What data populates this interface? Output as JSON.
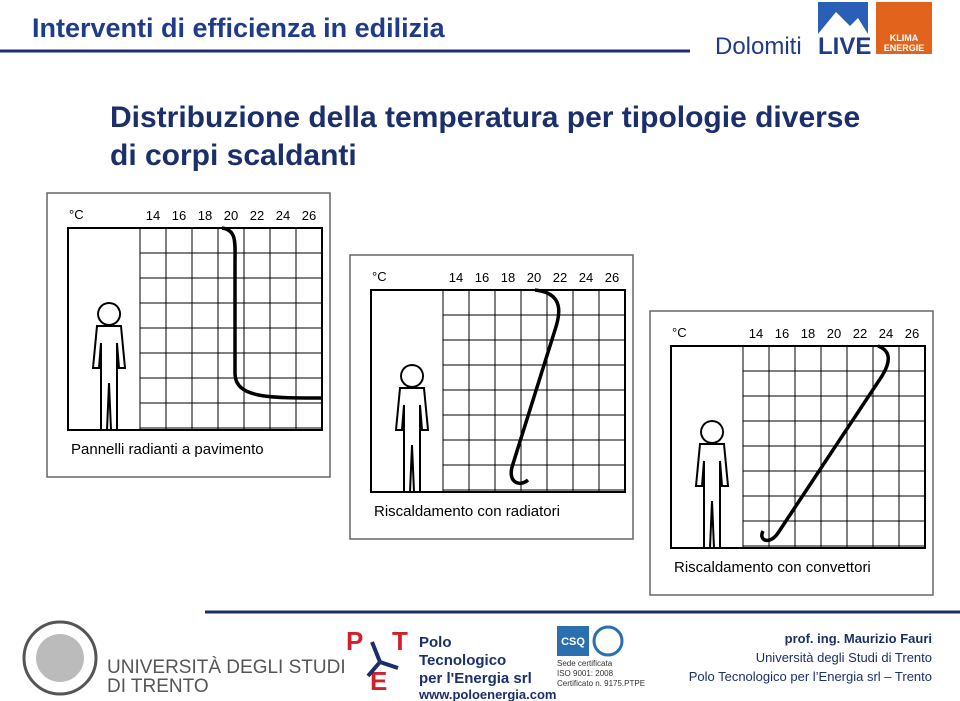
{
  "header": {
    "title": "Interventi di efficienza in edilizia",
    "logo": "Dolomiti",
    "logo_bold": "LIVE",
    "badge": [
      "KLIMA",
      "ENERGIE"
    ]
  },
  "subtitle": [
    "Distribuzione della temperatura per tipologie diverse",
    "di corpi scaldanti"
  ],
  "diagrams": [
    {
      "unit": "°C",
      "ticks": [
        14,
        16,
        18,
        20,
        22,
        24,
        26
      ],
      "caption": "Pannelli radianti a pavimento"
    },
    {
      "unit": "°C",
      "ticks": [
        14,
        16,
        18,
        20,
        22,
        24,
        26
      ],
      "caption": "Riscaldamento con radiatori"
    },
    {
      "unit": "°C",
      "ticks": [
        14,
        16,
        18,
        20,
        22,
        24,
        26
      ],
      "caption": "Riscaldamento con convettori"
    }
  ],
  "footer": {
    "university": [
      "UNIVERSITÀ DEGLI STUDI",
      "DI TRENTO"
    ],
    "polo_initials": [
      "P",
      "T",
      "E"
    ],
    "polo": [
      "Polo",
      "Tecnologico",
      "per l'Energia srl"
    ],
    "website": "www.poloenergia.com",
    "cert_logo": "CSQ",
    "certification": [
      "Sede certificata",
      "ISO 9001: 2008",
      "Certificato n. 9175.PTPE"
    ],
    "author": [
      "prof. ing. Maurizio Fauri",
      "Università degli Studi di Trento",
      "Polo Tecnologico per l’Energia srl – Trento"
    ]
  }
}
